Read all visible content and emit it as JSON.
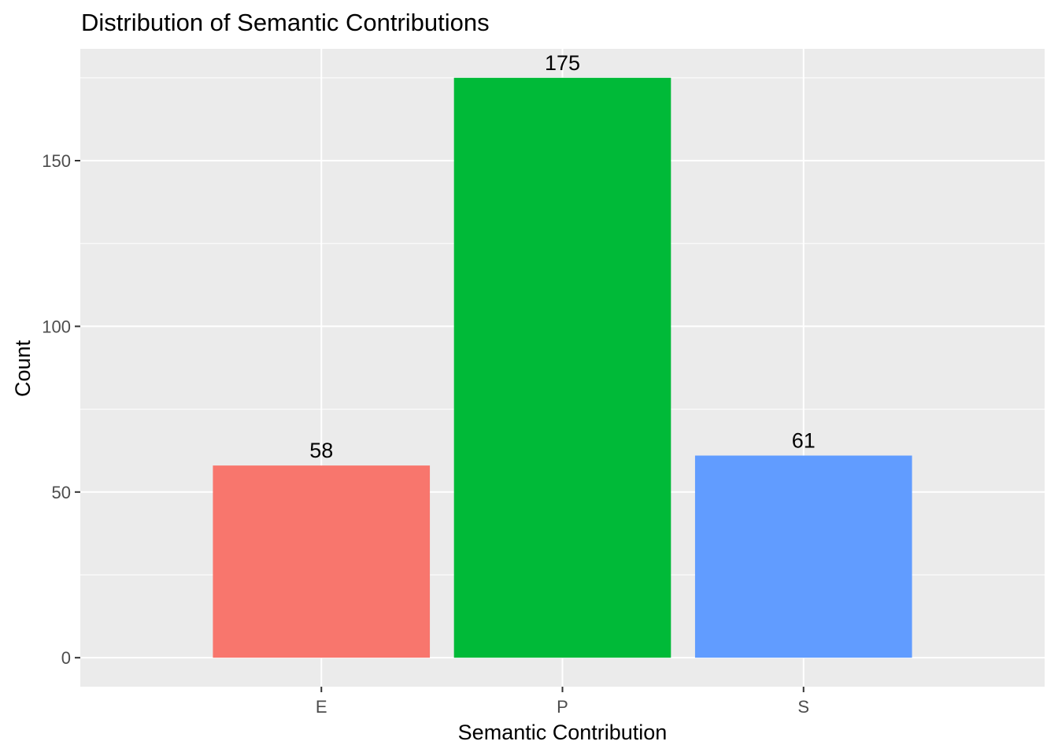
{
  "chart_data": {
    "type": "bar",
    "title": "Distribution of Semantic Contributions",
    "xlabel": "Semantic Contribution",
    "ylabel": "Count",
    "categories": [
      "E",
      "P",
      "S"
    ],
    "values": [
      58,
      175,
      61
    ],
    "data_labels": [
      "58",
      "175",
      "61"
    ],
    "colors": [
      "#F8766D",
      "#00BA38",
      "#619CFF"
    ],
    "ylim": [
      -8.75,
      183.75
    ],
    "y_major_ticks": [
      0,
      50,
      100,
      150
    ],
    "y_tick_labels": [
      "0",
      "50",
      "100",
      "150"
    ],
    "y_minor_ticks": [
      25,
      75,
      125,
      175
    ],
    "grid": true,
    "legend": "none",
    "panel_background": "#EBEBEB",
    "grid_color": "#FFFFFF",
    "tick_label_color": "#4D4D4D"
  }
}
